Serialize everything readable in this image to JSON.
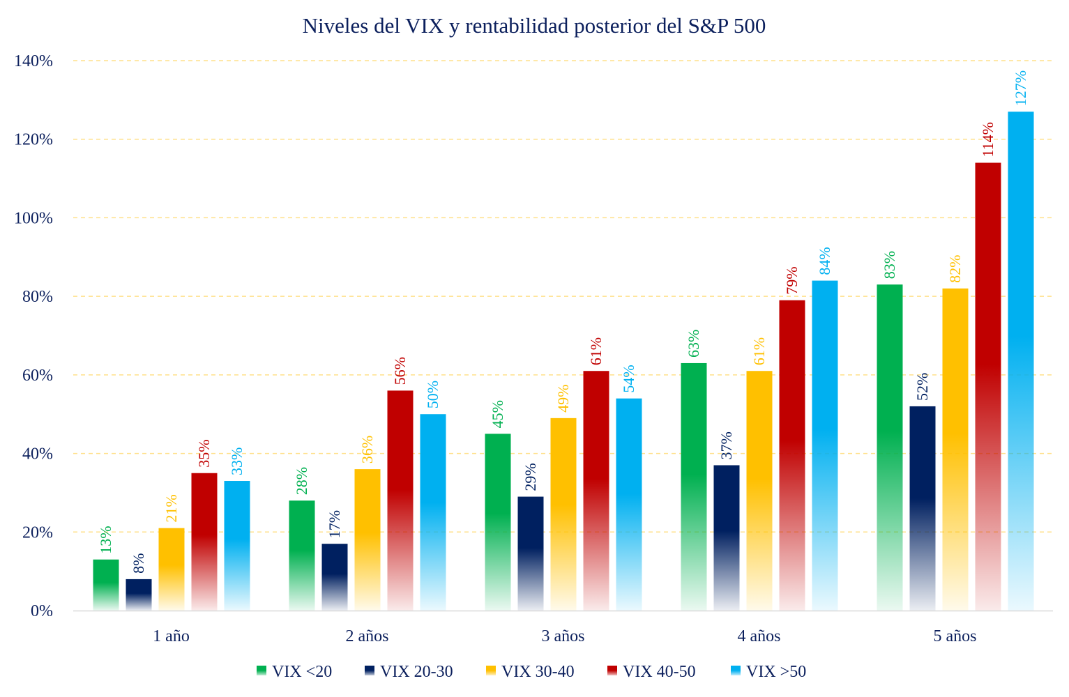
{
  "chart_data": {
    "type": "bar",
    "title": "Niveles del VIX y rentabilidad posterior del S&P 500",
    "xlabel": "",
    "ylabel": "",
    "categories": [
      "1 año",
      "2 años",
      "3 años",
      "4 años",
      "5 años"
    ],
    "ylim": [
      0,
      140
    ],
    "yticks": [
      0,
      20,
      40,
      60,
      80,
      100,
      120,
      140
    ],
    "ytick_labels": [
      "0%",
      "20%",
      "40%",
      "60%",
      "80%",
      "100%",
      "120%",
      "140%"
    ],
    "grid": true,
    "legend_position": "bottom",
    "value_suffix": "%",
    "series": [
      {
        "name": "VIX <20",
        "color": "#00b050",
        "values": [
          13,
          28,
          45,
          63,
          83
        ]
      },
      {
        "name": "VIX 20-30",
        "color": "#002060",
        "values": [
          8,
          17,
          29,
          37,
          52
        ]
      },
      {
        "name": "VIX 30-40",
        "color": "#ffc000",
        "values": [
          21,
          36,
          49,
          61,
          82
        ]
      },
      {
        "name": "VIX 40-50",
        "color": "#c00000",
        "values": [
          35,
          56,
          61,
          79,
          114
        ]
      },
      {
        "name": "VIX >50",
        "color": "#00b0f0",
        "values": [
          33,
          50,
          54,
          84,
          127
        ]
      }
    ]
  },
  "colors": {
    "text": "#0b1f5c",
    "grid": "#ffe08a",
    "axis": "#d9d9d9"
  }
}
